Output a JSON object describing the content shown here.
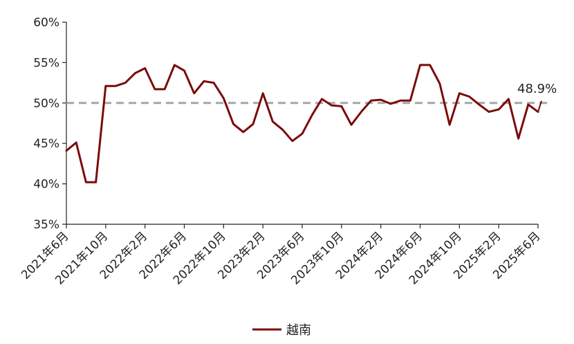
{
  "chart_data": {
    "type": "line",
    "title": "",
    "xlabel": "",
    "ylabel": "",
    "ylim": [
      35,
      60
    ],
    "yticks": [
      35,
      40,
      45,
      50,
      55,
      60
    ],
    "ytick_labels": [
      "35%",
      "40%",
      "45%",
      "50%",
      "55%",
      "60%"
    ],
    "x": [
      "2021年6月",
      "2021年7月",
      "2021年8月",
      "2021年9月",
      "2021年10月",
      "2021年11月",
      "2021年12月",
      "2022年1月",
      "2022年2月",
      "2022年3月",
      "2022年4月",
      "2022年5月",
      "2022年6月",
      "2022年7月",
      "2022年8月",
      "2022年9月",
      "2022年10月",
      "2022年11月",
      "2022年12月",
      "2023年1月",
      "2023年2月",
      "2023年3月",
      "2023年4月",
      "2023年5月",
      "2023年6月",
      "2023年7月",
      "2023年8月",
      "2023年9月",
      "2023年10月",
      "2023年11月",
      "2023年12月",
      "2024年1月",
      "2024年2月",
      "2024年3月",
      "2024年4月",
      "2024年5月",
      "2024年6月",
      "2024年7月",
      "2024年8月",
      "2024年9月",
      "2024年10月",
      "2024年11月",
      "2024年12月",
      "2025年1月",
      "2025年2月",
      "2025年3月",
      "2025年4月",
      "2025年5月",
      "2025年6月"
    ],
    "xtick_labels": [
      "2021年6月",
      "2021年10月",
      "2022年2月",
      "2022年6月",
      "2022年10月",
      "2023年2月",
      "2023年6月",
      "2023年10月",
      "2024年2月",
      "2024年6月",
      "2024年10月",
      "2025年2月",
      "2025年6月"
    ],
    "series": [
      {
        "name": "越南",
        "color": "#7a0a0a",
        "values": [
          44.1,
          45.1,
          40.2,
          40.2,
          52.1,
          52.1,
          52.5,
          53.7,
          54.3,
          51.7,
          51.7,
          54.7,
          54.0,
          51.2,
          52.7,
          52.5,
          50.6,
          47.4,
          46.4,
          47.4,
          51.2,
          47.7,
          46.7,
          45.3,
          46.2,
          48.5,
          50.5,
          49.7,
          49.6,
          47.3,
          48.9,
          50.3,
          50.4,
          49.9,
          50.3,
          50.3,
          54.7,
          54.7,
          52.4,
          47.3,
          51.2,
          50.8,
          49.8,
          48.9,
          49.2,
          50.5,
          45.6,
          49.8,
          48.9
        ]
      }
    ],
    "reference_line": {
      "value": 50,
      "color": "#a6a6a6",
      "style": "dashed"
    },
    "annotation": {
      "text": "48.9%"
    },
    "grid": false,
    "legend": {
      "position": "bottom-center",
      "label": "越南"
    }
  }
}
